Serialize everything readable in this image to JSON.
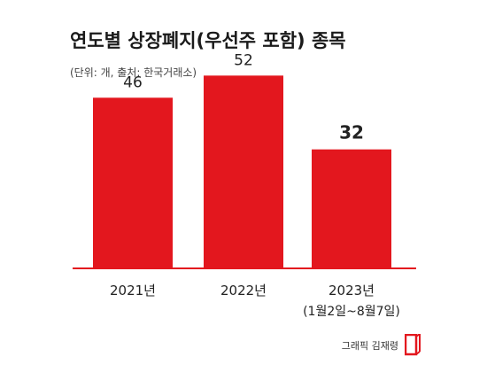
{
  "title": "연도별 상장폐지(우선주 포함) 종목",
  "subtitle": "(단위: 개, 출처: 한국거래소)",
  "credit": "그래픽 김재령",
  "colors": {
    "bar": "#e3171e",
    "axis": "#e3171e",
    "label": "#222222"
  },
  "logo_icon": "brand-logo-icon",
  "chart_data": {
    "type": "bar",
    "title": "연도별 상장폐지(우선주 포함) 종목",
    "xlabel": "",
    "ylabel": "",
    "ylim": [
      0,
      60
    ],
    "grid": false,
    "categories": [
      "2021년",
      "2022년",
      "2023년"
    ],
    "category_sublabels": [
      "",
      "",
      "(1월2일~8월7일)"
    ],
    "values": [
      46,
      52,
      32
    ],
    "value_labels": [
      "46",
      "52",
      "32"
    ]
  }
}
